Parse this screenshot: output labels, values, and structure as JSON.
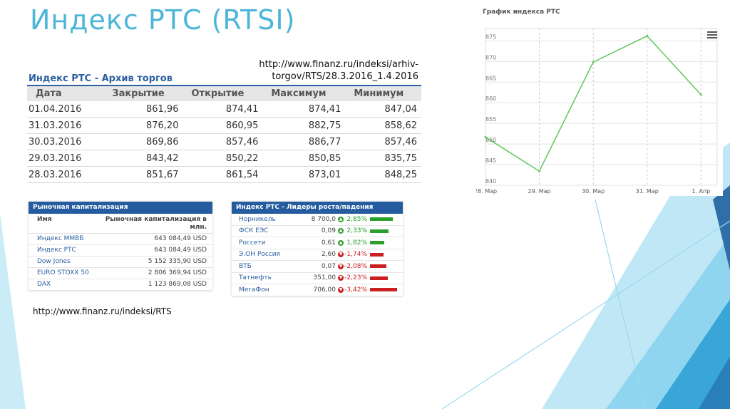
{
  "slide": {
    "title": "Индекс РТС (RTSI)",
    "source_url_archive_line1": "http://www.finanz.ru/indeksi/arhiv-",
    "source_url_archive_line2": "torgov/RTS/28.3.2016_1.4.2016",
    "source_url_rts": "http://www.finanz.ru/indeksi/RTS"
  },
  "archive": {
    "title": "Индекс РТС - Архив торгов",
    "columns": [
      "Дата",
      "Закрытие",
      "Открытие",
      "Максимум",
      "Минимум"
    ],
    "rows": [
      [
        "01.04.2016",
        "861,96",
        "874,41",
        "874,41",
        "847,04"
      ],
      [
        "31.03.2016",
        "876,20",
        "860,95",
        "882,75",
        "858,62"
      ],
      [
        "30.03.2016",
        "869,86",
        "857,46",
        "886,77",
        "857,46"
      ],
      [
        "29.03.2016",
        "843,42",
        "850,22",
        "850,85",
        "835,75"
      ],
      [
        "28.03.2016",
        "851,67",
        "861,54",
        "873,01",
        "848,25"
      ]
    ]
  },
  "market_cap": {
    "title": "Рыночная капитализация",
    "col_name": "Имя",
    "col_value": "Рыночная капитализация в млн.",
    "rows": [
      {
        "name": "Индекс ММВБ",
        "value": "643 084,49 USD"
      },
      {
        "name": "Индекс РТС",
        "value": "643 084,49 USD"
      },
      {
        "name": "Dow Jones",
        "value": "5 152 335,90 USD"
      },
      {
        "name": "EURO STOXX 50",
        "value": "2 806 369,94 USD"
      },
      {
        "name": "DAX",
        "value": "1 123 869,08 USD"
      }
    ]
  },
  "leaders": {
    "title": "Индекс РТС - Лидеры роста/падения",
    "rows": [
      {
        "name": "Норникель",
        "price": "8 700,0",
        "change": "2,85%",
        "dir": "up",
        "magnitude": 2.85
      },
      {
        "name": "ФСК ЕЭС",
        "price": "0,09",
        "change": "2,33%",
        "dir": "up",
        "magnitude": 2.33
      },
      {
        "name": "Россети",
        "price": "0,61",
        "change": "1,82%",
        "dir": "up",
        "magnitude": 1.82
      },
      {
        "name": "Э.ОН Россия",
        "price": "2,60",
        "change": "-1,74%",
        "dir": "down",
        "magnitude": 1.74
      },
      {
        "name": "ВТБ",
        "price": "0,07",
        "change": "-2,08%",
        "dir": "down",
        "magnitude": 2.08
      },
      {
        "name": "Татнефть",
        "price": "351,00",
        "change": "-2,23%",
        "dir": "down",
        "magnitude": 2.23
      },
      {
        "name": "МегаФон",
        "price": "706,00",
        "change": "-3,42%",
        "dir": "down",
        "magnitude": 3.42
      }
    ],
    "colors": {
      "up": "#2aa02a",
      "down": "#cc1f1f"
    }
  },
  "chart_data": {
    "type": "line",
    "title": "График индекса РТС",
    "categories": [
      "28. Мар",
      "29. Мар",
      "30. Мар",
      "31. Мар",
      "1. Апр"
    ],
    "series": [
      {
        "values": [
          851.67,
          843.42,
          869.86,
          876.2,
          861.96
        ]
      }
    ],
    "yticks": [
      840,
      845,
      850,
      855,
      860,
      865,
      870,
      875
    ],
    "ylim": [
      840,
      878
    ],
    "grid": true,
    "line_color": "#5cc85c"
  }
}
